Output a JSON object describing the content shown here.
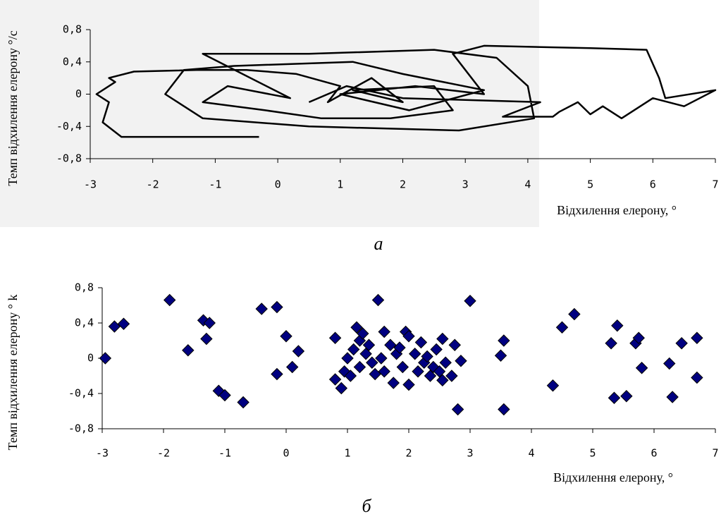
{
  "chart_data": [
    {
      "type": "line",
      "caption": "а",
      "x_label": "Відхилення елерону, °",
      "y_label": "Темп відхилення елерону °/c",
      "xlim": [
        -3,
        7
      ],
      "xticks": [
        -3,
        -2,
        -1,
        0,
        1,
        2,
        3,
        4,
        5,
        6,
        7
      ],
      "ylim": [
        -0.8,
        0.8
      ],
      "yticks": [
        {
          "value": -0.8,
          "label": "-0,8"
        },
        {
          "value": -0.4,
          "label": "-0,4"
        },
        0,
        {
          "value": 0.4,
          "label": "0,4"
        },
        {
          "value": 0.8,
          "label": "0,8"
        }
      ],
      "color": "#000000",
      "x": [
        -0.3,
        -2.5,
        -2.8,
        -2.7,
        -2.9,
        -2.6,
        -2.7,
        -2.3,
        -1.3,
        -0.5,
        0.3,
        1,
        0.8,
        1.5,
        2,
        1.2,
        2.5,
        2.8,
        1.8,
        0.7,
        -0.2,
        -1.2,
        -0.8,
        0.2,
        -1.2,
        0.5,
        2.5,
        3.5,
        4,
        4.1,
        2.9,
        0.5,
        -1.2,
        -1.8,
        -1.5,
        -0.7,
        1.2,
        2,
        3.3,
        2.1,
        1,
        2.2,
        3.3,
        2.8,
        3.3,
        5,
        5.9,
        6.1,
        6.2,
        7,
        6.5,
        6,
        5.5,
        5.2,
        5,
        4.8,
        4.5,
        4.4,
        3.6,
        4.2,
        2,
        1.1,
        0.5
      ],
      "y": [
        -0.53,
        -0.53,
        -0.35,
        -0.1,
        0,
        0.15,
        0.2,
        0.28,
        0.3,
        0.3,
        0.25,
        0.1,
        -0.1,
        0.2,
        -0.1,
        0.05,
        0.1,
        -0.2,
        -0.3,
        -0.3,
        -0.2,
        -0.1,
        0.1,
        -0.05,
        0.5,
        0.5,
        0.55,
        0.45,
        0.1,
        -0.3,
        -0.45,
        -0.4,
        -0.3,
        0,
        0.3,
        0.35,
        0.4,
        0.25,
        0.05,
        -0.2,
        0,
        0.1,
        0,
        0.5,
        0.6,
        0.57,
        0.55,
        0.2,
        -0.05,
        0.05,
        -0.15,
        -0.05,
        -0.3,
        -0.15,
        -0.25,
        -0.1,
        -0.22,
        -0.28,
        -0.28,
        -0.1,
        -0.05,
        0.1,
        -0.1
      ]
    },
    {
      "type": "scatter",
      "caption": "б",
      "x_label": "Відхилення елерону, °",
      "y_label": "Темп відхилення елерону ° k",
      "xlim": [
        -3,
        7
      ],
      "xticks": [
        -3,
        -2,
        -1,
        0,
        1,
        2,
        3,
        4,
        5,
        6,
        7
      ],
      "ylim": [
        -0.8,
        0.8
      ],
      "yticks": [
        {
          "value": -0.8,
          "label": "-0,8"
        },
        {
          "value": -0.4,
          "label": "-0,4"
        },
        0,
        {
          "value": 0.4,
          "label": "0,4"
        },
        {
          "value": 0.8,
          "label": "0,8"
        }
      ],
      "color": "#000080",
      "x": [
        -2.95,
        -2.8,
        -2.65,
        -1.9,
        -1.6,
        -1.35,
        -1.3,
        -1.25,
        -1.1,
        -1.0,
        -0.7,
        -0.4,
        -0.15,
        -0.15,
        0,
        0.1,
        0.2,
        0.8,
        0.8,
        0.9,
        0.95,
        1.0,
        1.05,
        1.1,
        1.15,
        1.2,
        1.2,
        1.25,
        1.3,
        1.35,
        1.4,
        1.45,
        1.5,
        1.55,
        1.6,
        1.6,
        1.7,
        1.75,
        1.8,
        1.85,
        1.9,
        1.95,
        2.0,
        2.0,
        2.1,
        2.15,
        2.2,
        2.25,
        2.3,
        2.35,
        2.4,
        2.45,
        2.5,
        2.55,
        2.55,
        2.6,
        2.7,
        2.75,
        2.8,
        2.85,
        3.0,
        3.5,
        3.55,
        3.55,
        4.35,
        4.5,
        4.7,
        5.3,
        5.35,
        5.4,
        5.55,
        5.7,
        5.75,
        5.8,
        6.25,
        6.3,
        6.45,
        6.7,
        6.7
      ],
      "y": [
        0,
        0.36,
        0.39,
        0.66,
        0.09,
        0.43,
        0.22,
        0.4,
        -0.37,
        -0.42,
        -0.5,
        0.56,
        0.58,
        -0.18,
        0.25,
        -0.1,
        0.08,
        0.23,
        -0.24,
        -0.34,
        -0.15,
        0,
        -0.2,
        0.1,
        0.35,
        0.2,
        -0.1,
        0.28,
        0.05,
        0.15,
        -0.05,
        -0.18,
        0.66,
        0,
        0.3,
        -0.15,
        0.15,
        -0.28,
        0.05,
        0.12,
        -0.1,
        0.3,
        0.25,
        -0.3,
        0.05,
        -0.15,
        0.18,
        -0.05,
        0.02,
        -0.2,
        -0.1,
        0.1,
        -0.15,
        0.22,
        -0.25,
        -0.05,
        -0.2,
        0.15,
        -0.58,
        -0.03,
        0.65,
        0.03,
        0.2,
        -0.58,
        -0.31,
        0.35,
        0.5,
        0.17,
        -0.45,
        0.37,
        -0.43,
        0.17,
        0.23,
        -0.11,
        -0.06,
        -0.44,
        0.17,
        0.23,
        -0.22
      ]
    }
  ]
}
